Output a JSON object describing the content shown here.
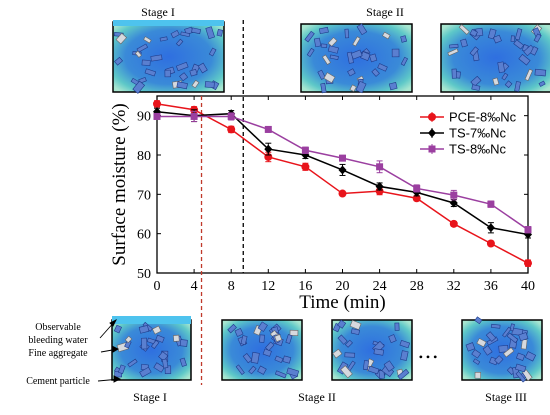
{
  "top_labels": {
    "stage_i": "Stage I",
    "stage_ii": "Stage II"
  },
  "bottom_labels": {
    "stage_i": "Stage I",
    "stage_ii": "Stage II",
    "stage_iii": "Stage III",
    "ellipsis": "• • •"
  },
  "annotations": {
    "observable": "Observable",
    "bleeding_water": "bleeding water",
    "fine_aggregate": "Fine aggregate",
    "cement_particle": "Cement particle"
  },
  "colors": {
    "pce": "#e8141b",
    "ts7": "#000000",
    "ts8": "#9b3fa0",
    "water_band": "#4ec3ee",
    "red_guide": "#c0392b",
    "black_guide": "#000000"
  },
  "chart_data": {
    "type": "line",
    "xlabel": "Time (min)",
    "ylabel": "Surface moisture (%)",
    "x": [
      0,
      4,
      8,
      12,
      16,
      20,
      24,
      28,
      32,
      36,
      40
    ],
    "xlim": [
      0,
      40
    ],
    "ylim": [
      50,
      95
    ],
    "x_ticks": [
      0,
      4,
      8,
      12,
      16,
      20,
      24,
      28,
      32,
      36,
      40
    ],
    "y_ticks": [
      50,
      60,
      70,
      80,
      90
    ],
    "legend_position": "top-right",
    "grid": false,
    "series": [
      {
        "name": "PCE-8‰Nc",
        "color": "#e8141b",
        "marker": "circle",
        "values": [
          93.0,
          91.5,
          86.5,
          79.5,
          77.0,
          70.2,
          70.8,
          69.0,
          62.5,
          57.5,
          52.5
        ],
        "errors": [
          0.8,
          0.8,
          0.8,
          1.2,
          0.9,
          0.5,
          0.9,
          0.6,
          0.6,
          0.6,
          0.8
        ]
      },
      {
        "name": "TS-7‰Nc",
        "color": "#000000",
        "marker": "diamond",
        "values": [
          91.0,
          90.0,
          90.5,
          81.5,
          80.0,
          76.2,
          72.0,
          70.5,
          67.8,
          61.5,
          59.8
        ],
        "errors": [
          0.9,
          1.5,
          0.8,
          1.5,
          0.9,
          1.4,
          0.9,
          0.9,
          0.9,
          1.3,
          0.9
        ]
      },
      {
        "name": "TS-8‰Nc",
        "color": "#9b3fa0",
        "marker": "square",
        "values": [
          89.8,
          89.8,
          89.8,
          86.5,
          81.2,
          79.2,
          77.0,
          71.5,
          69.8,
          67.5,
          61.0
        ],
        "errors": [
          0.7,
          1.3,
          0.9,
          0.7,
          0.8,
          0.7,
          1.5,
          0.9,
          1.2,
          0.8,
          0.8
        ]
      }
    ],
    "vertical_guides": [
      {
        "x": 4.8,
        "color": "#c0392b",
        "style": "dashed"
      },
      {
        "x": 9.3,
        "color": "#000000",
        "style": "dashed"
      }
    ]
  }
}
